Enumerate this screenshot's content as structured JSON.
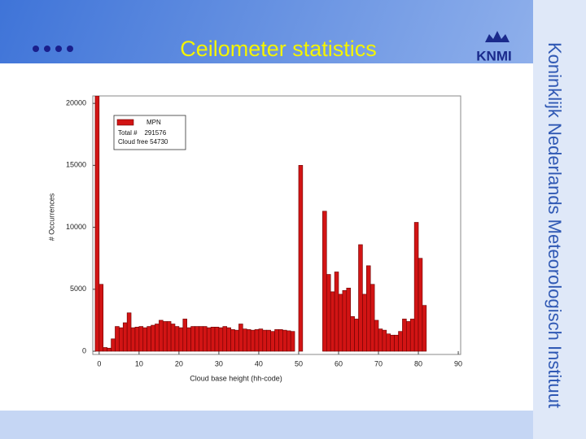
{
  "header": {
    "title": "Ceilometer statistics",
    "logo": "KNMI",
    "side_text": "Koninklijk Nederlands Meteorologisch Instituut"
  },
  "chart_data": {
    "type": "histogram",
    "series_name": "MPN",
    "annotations": [
      "Total #    291576",
      "Cloud free 54730"
    ],
    "x_label": "Cloud base height (hh-code)",
    "y_label": "# Occurrences",
    "bins": [
      -1,
      0,
      1,
      2,
      3,
      4,
      5,
      6,
      7,
      8,
      9,
      10,
      11,
      12,
      13,
      14,
      15,
      16,
      17,
      18,
      19,
      20,
      21,
      22,
      23,
      24,
      25,
      26,
      27,
      28,
      29,
      30,
      31,
      32,
      33,
      34,
      35,
      36,
      37,
      38,
      39,
      40,
      41,
      42,
      43,
      44,
      45,
      46,
      47,
      48,
      49,
      50,
      51,
      52,
      53,
      54,
      55,
      56,
      57,
      58,
      59,
      60,
      61,
      62,
      63,
      64,
      65,
      66,
      67,
      68,
      69,
      70,
      71,
      72,
      73,
      74,
      75,
      76,
      77,
      78,
      79,
      80,
      81,
      82
    ],
    "counts": [
      20600,
      5400,
      300,
      250,
      1000,
      2000,
      1900,
      2300,
      3100,
      1900,
      1950,
      2000,
      1900,
      2000,
      2100,
      2200,
      2500,
      2400,
      2400,
      2200,
      2000,
      1900,
      2600,
      1900,
      2000,
      2000,
      2000,
      2000,
      1900,
      1950,
      1950,
      1900,
      2000,
      1900,
      1750,
      1700,
      2200,
      1800,
      1750,
      1700,
      1750,
      1800,
      1700,
      1700,
      1600,
      1750,
      1750,
      1700,
      1650,
      1600,
      0,
      15000,
      0,
      0,
      0,
      0,
      0,
      11300,
      6200,
      4800,
      6400,
      4600,
      4900,
      5100,
      2800,
      2600,
      8600,
      4600,
      6900,
      5400,
      2500,
      1800,
      1700,
      1400,
      1300,
      1300,
      1600,
      2600,
      2400,
      2600,
      10400,
      7500,
      3700
    ],
    "color": "#d21414",
    "xlim": [
      -1.6,
      90.6
    ],
    "ylim": [
      -260,
      20600
    ],
    "xticks": [
      0,
      10,
      20,
      30,
      40,
      50,
      60,
      70,
      80,
      90
    ],
    "yticks": [
      0,
      5000,
      10000,
      15000,
      20000
    ]
  }
}
